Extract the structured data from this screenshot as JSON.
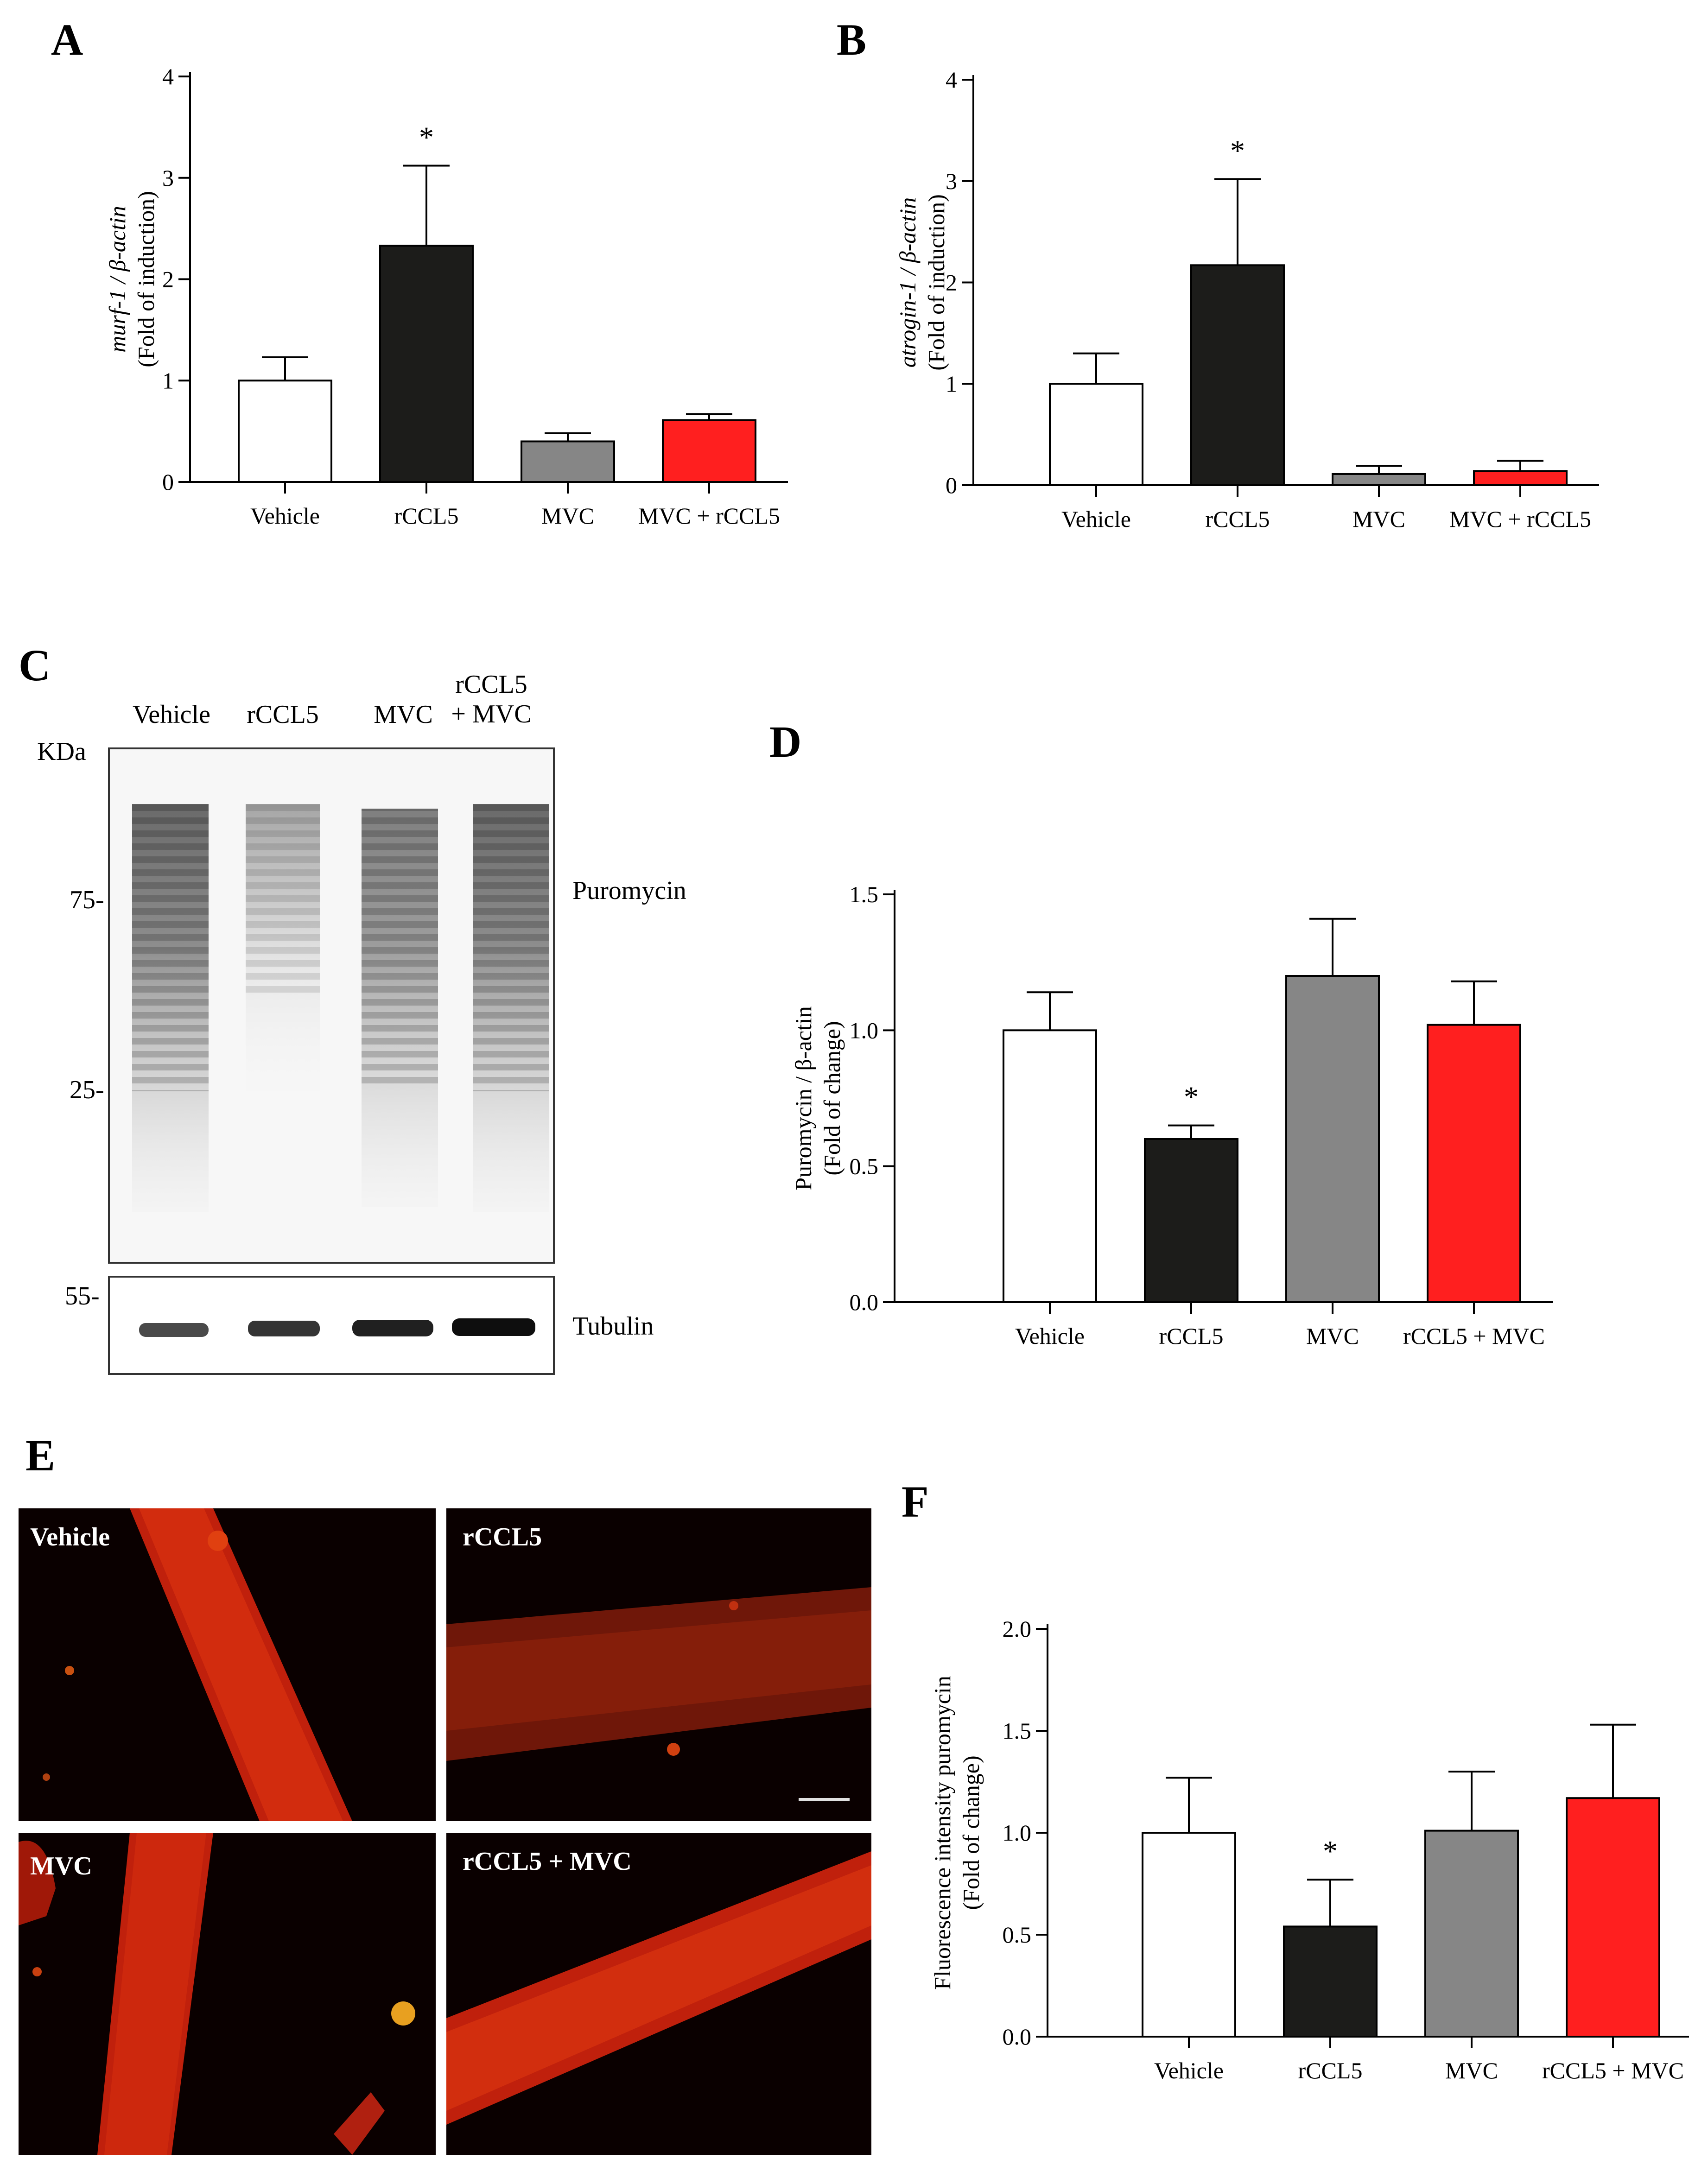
{
  "panels": {
    "A": "A",
    "B": "B",
    "C": "C",
    "D": "D",
    "E": "E",
    "F": "F"
  },
  "colors": {
    "vehicle": "#ffffff",
    "rccl5": "#1c1c1a",
    "mvc": "#868686",
    "combo": "#ff1f1f"
  },
  "chart_data": [
    {
      "id": "A",
      "type": "bar",
      "categories": [
        "Vehicle",
        "rCCL5",
        "MVC",
        "MVC + rCCL5"
      ],
      "values": [
        1.0,
        2.33,
        0.4,
        0.61
      ],
      "errors": [
        0.23,
        0.79,
        0.08,
        0.06
      ],
      "significance": [
        "",
        "*",
        "",
        ""
      ],
      "ylabel_top": "murf-1 / β-actin",
      "ylabel_bottom": "(Fold of induction)",
      "ylim": [
        0,
        4
      ],
      "yticks": [
        "0",
        "1",
        "2",
        "3",
        "4"
      ]
    },
    {
      "id": "B",
      "type": "bar",
      "categories": [
        "Vehicle",
        "rCCL5",
        "MVC",
        "MVC + rCCL5"
      ],
      "values": [
        1.0,
        2.17,
        0.11,
        0.14
      ],
      "errors": [
        0.3,
        0.85,
        0.08,
        0.1
      ],
      "significance": [
        "",
        "*",
        "",
        ""
      ],
      "ylabel_top": "atrogin-1 / β-actin",
      "ylabel_bottom": "(Fold of induction)",
      "ylim": [
        0,
        4
      ],
      "yticks": [
        "0",
        "1",
        "2",
        "3",
        "4"
      ]
    },
    {
      "id": "D",
      "type": "bar",
      "categories": [
        "Vehicle",
        "rCCL5",
        "MVC",
        "rCCL5 + MVC"
      ],
      "values": [
        1.0,
        0.6,
        1.2,
        1.02
      ],
      "errors": [
        0.14,
        0.05,
        0.21,
        0.16
      ],
      "significance": [
        "",
        "*",
        "",
        ""
      ],
      "ylabel_top": "Puromycin / β-actin",
      "ylabel_bottom": "(Fold of change)",
      "ylim": [
        0,
        1.5
      ],
      "yticks": [
        "0.0",
        "0.5",
        "1.0",
        "1.5"
      ]
    },
    {
      "id": "F",
      "type": "bar",
      "categories": [
        "Vehicle",
        "rCCL5",
        "MVC",
        "rCCL5 + MVC"
      ],
      "values": [
        1.0,
        0.54,
        1.01,
        1.17
      ],
      "errors": [
        0.27,
        0.23,
        0.29,
        0.36
      ],
      "significance": [
        "",
        "*",
        "",
        ""
      ],
      "ylabel_top": "Fluorescence intensity puromycin",
      "ylabel_bottom": "(Fold of change)",
      "ylim": [
        0,
        2.0
      ],
      "yticks": [
        "0.0",
        "0.5",
        "1.0",
        "1.5",
        "2.0"
      ]
    }
  ],
  "western_blot": {
    "lanes": [
      "Vehicle",
      "rCCL5",
      "MVC",
      "rCCL5\n+ MVC"
    ],
    "lane_line1": [
      "Vehicle",
      "rCCL5",
      "MVC",
      "rCCL5"
    ],
    "lane_line2": [
      "",
      "",
      "",
      "+ MVC"
    ],
    "kda_label": "KDa",
    "markers": [
      "75-",
      "25-",
      "55-"
    ],
    "top_label": "Puromycin",
    "bottom_label": "Tubulin"
  },
  "micrographs": {
    "labels": [
      "Vehicle",
      "rCCL5",
      "MVC",
      "rCCL5 + MVC"
    ]
  }
}
